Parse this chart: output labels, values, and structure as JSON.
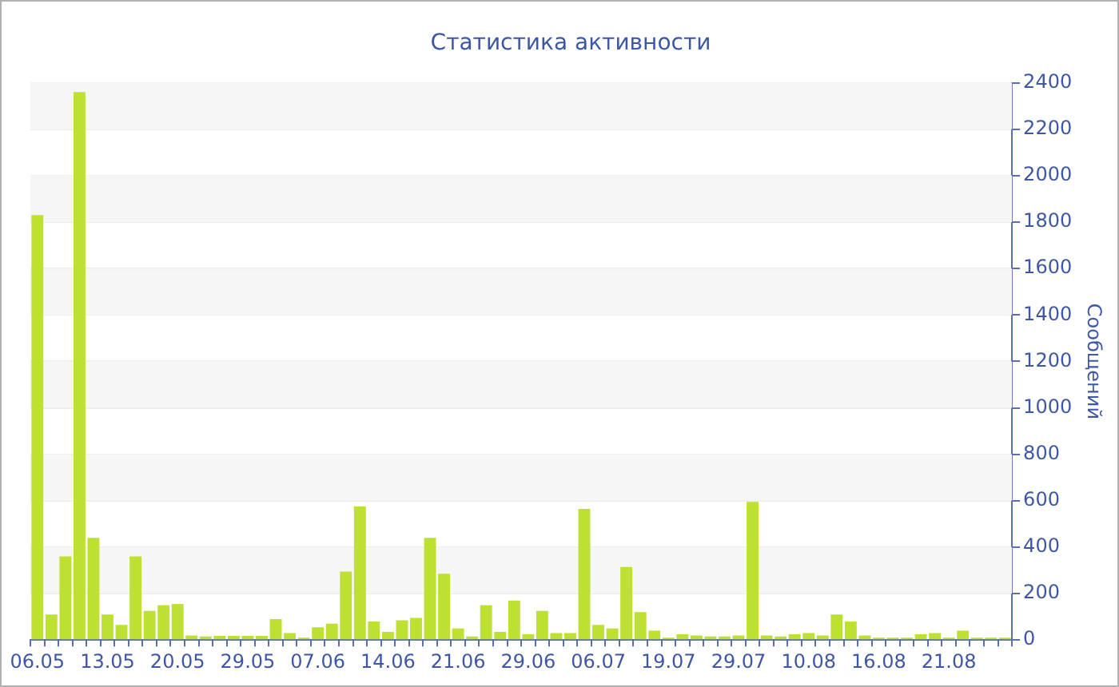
{
  "chart_data": {
    "type": "bar",
    "title": "Статистика активности",
    "ylabel": "Сообщений",
    "categories": [
      "06.05",
      null,
      null,
      null,
      null,
      "13.05",
      null,
      null,
      null,
      null,
      "20.05",
      null,
      null,
      null,
      null,
      "29.05",
      null,
      null,
      null,
      null,
      "07.06",
      null,
      null,
      null,
      null,
      "14.06",
      null,
      null,
      null,
      null,
      "21.06",
      null,
      null,
      null,
      null,
      "29.06",
      null,
      null,
      null,
      null,
      "06.07",
      null,
      null,
      null,
      null,
      "19.07",
      null,
      null,
      null,
      null,
      "29.07",
      null,
      null,
      null,
      null,
      "10.08",
      null,
      null,
      null,
      null,
      "16.08",
      null,
      null,
      null,
      null,
      "21.08",
      null,
      null,
      null,
      null
    ],
    "values": [
      1830,
      110,
      360,
      2360,
      440,
      110,
      65,
      360,
      125,
      150,
      155,
      20,
      15,
      18,
      18,
      18,
      18,
      90,
      30,
      10,
      55,
      70,
      295,
      575,
      80,
      35,
      85,
      95,
      440,
      285,
      50,
      15,
      150,
      35,
      170,
      25,
      125,
      30,
      30,
      565,
      65,
      50,
      315,
      120,
      40,
      10,
      25,
      20,
      15,
      15,
      20,
      595,
      20,
      15,
      25,
      30,
      20,
      110,
      80,
      20,
      10,
      10,
      10,
      25,
      30,
      10,
      40,
      10,
      10,
      10
    ],
    "color": "#bde033",
    "ylim": [
      0,
      2400
    ],
    "yticks": [
      0,
      200,
      400,
      600,
      800,
      1000,
      1200,
      1400,
      1600,
      1800,
      2000,
      2200,
      2400
    ],
    "grid": "y",
    "legend": false
  }
}
